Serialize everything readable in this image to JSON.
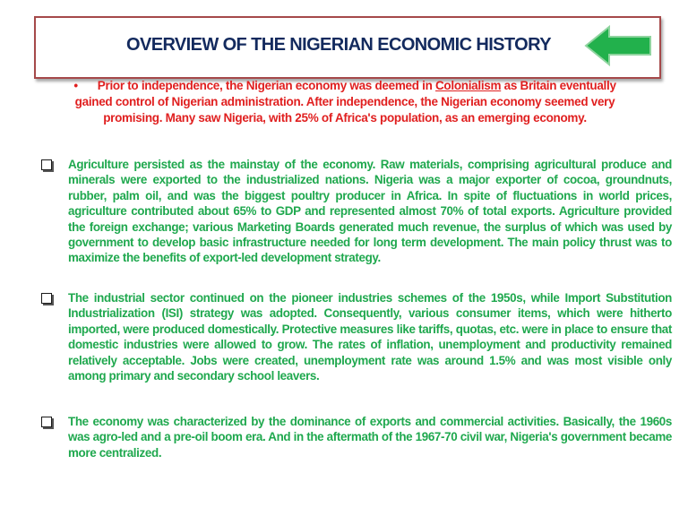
{
  "title": "OVERVIEW OF THE NIGERIAN ECONOMIC HISTORY",
  "arrow_icon": "green-left-arrow",
  "colors": {
    "title": "#132a5e",
    "intro": "#e01f1f",
    "body": "#1fa84e",
    "arrow": "#22b14c",
    "border": "#a5494a"
  },
  "intro": {
    "bullet": "•",
    "before": "Prior to independence, the Nigerian economy was deemed in ",
    "link": "Colonialism",
    "after": " as Britain eventually gained control of Nigerian administration. After independence, the Nigerian economy seemed very promising. Many saw Nigeria, with 25% of Africa's population, as an emerging economy."
  },
  "paragraphs": [
    "Agriculture persisted as the mainstay of the economy. Raw materials, comprising agricultural produce and minerals were exported to the industrialized nations. Nigeria was a major exporter of cocoa, groundnuts, rubber, palm oil, and was the biggest poultry producer in Africa. In spite of fluctuations in world prices, agriculture contributed about 65% to GDP and represented almost 70% of total exports. Agriculture provided the foreign exchange; various Marketing Boards generated much revenue, the surplus of which was used by government to develop basic infrastructure needed for long term development. The main policy thrust was to maximize the benefits of export-led development strategy.",
    "The industrial sector continued on the pioneer industries schemes of the 1950s, while Import Substitution Industrialization (ISI) strategy was adopted. Consequently, various consumer items, which were hitherto imported, were produced domestically. Protective measures like tariffs, quotas, etc. were in place to ensure that domestic industries were allowed to grow. The rates of inflation, unemployment and productivity remained relatively acceptable. Jobs were created, unemployment rate was around 1.5% and was most visible only among primary and secondary school leavers.",
    "The economy was characterized by the dominance of exports and commercial activities. Basically, the 1960s was agro-led and a pre-oil boom era. And in the aftermath of the 1967-70 civil war, Nigeria's government became more centralized."
  ]
}
